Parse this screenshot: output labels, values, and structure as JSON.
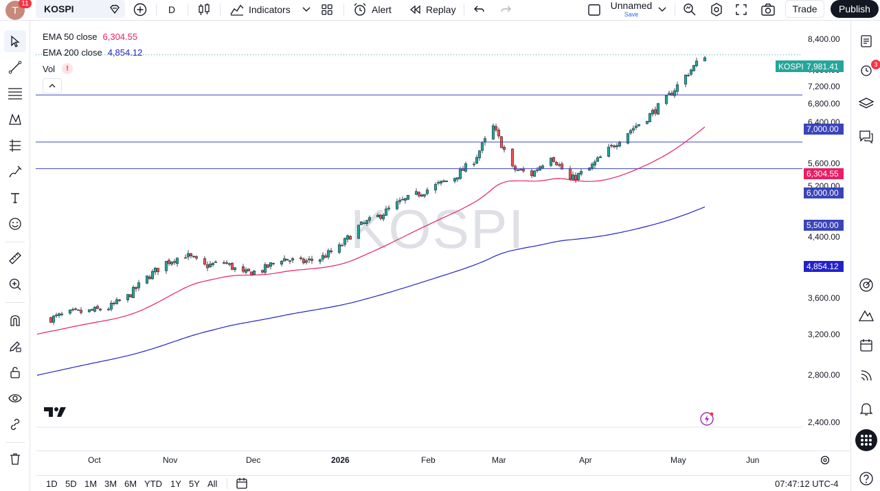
{
  "topbar": {
    "avatar_letter": "T",
    "notifications": "11",
    "symbol": "KOSPI",
    "interval": "D",
    "indicators_label": "Indicators",
    "alert_label": "Alert",
    "replay_label": "Replay",
    "layout_name": "Unnamed",
    "layout_save": "Save",
    "trade_label": "Trade",
    "publish_label": "Publish"
  },
  "legend": {
    "ema50_label": "EMA 50 close",
    "ema50_value": "6,304.55",
    "ema200_label": "EMA 200 close",
    "ema200_value": "4,854.12",
    "vol_label": "Vol",
    "vol_warning": "!"
  },
  "colors": {
    "up": "#26a69a",
    "down": "#ef5350",
    "ema50": "#e91e63",
    "ema200": "#2222cc",
    "hline": "#3944bc",
    "accent": "#2962ff",
    "bg": "#ffffff"
  },
  "price_scale": [
    "8,400.00",
    "7,600.00",
    "7,200.00",
    "6,800.00",
    "6,400.00",
    "5,600.00",
    "5,200.00",
    "4,400.00",
    "4,000.00",
    "3,600.00",
    "3,200.00",
    "2,800.00",
    "2,400.00"
  ],
  "price_tags": {
    "symbol_tag": "KOSPI",
    "last_price": "7,981.41",
    "hline_7000": "7,000.00",
    "ema50": "6,304.55",
    "hline_6000": "6,000.00",
    "hline_5500": "5,500.00",
    "ema200": "4,854.12"
  },
  "time_axis": [
    "Oct",
    "Nov",
    "Dec",
    "2026",
    "Feb",
    "Mar",
    "Apr",
    "May",
    "Jun"
  ],
  "bottombar": {
    "ranges": [
      "1D",
      "5D",
      "1M",
      "3M",
      "6M",
      "YTD",
      "1Y",
      "5Y",
      "All"
    ],
    "clock": "07:47:12 UTC-4"
  },
  "right_alerts_badge": "3",
  "chart_data": {
    "type": "candlestick",
    "title": "KOSPI",
    "interval": "D",
    "ylim": [
      2200,
      8700
    ],
    "y_scale": "log",
    "x_range": [
      "2025-09-15",
      "2026-06-15"
    ],
    "grid": false,
    "horizontal_lines": [
      7000,
      6000,
      5500
    ],
    "last_price": 7981.41,
    "series": [
      {
        "name": "EMA 50 close",
        "last": 6304.55
      },
      {
        "name": "EMA 200 close",
        "last": 4854.12
      }
    ],
    "closes_approx": [
      [
        "2025-09-15",
        3370
      ],
      [
        "2025-09-22",
        3430
      ],
      [
        "2025-09-29",
        3450
      ],
      [
        "2025-10-06",
        3490
      ],
      [
        "2025-10-13",
        3620
      ],
      [
        "2025-10-20",
        3850
      ],
      [
        "2025-10-27",
        4050
      ],
      [
        "2025-11-03",
        4150
      ],
      [
        "2025-11-10",
        4000
      ],
      [
        "2025-11-17",
        4050
      ],
      [
        "2025-11-24",
        3900
      ],
      [
        "2025-12-01",
        3950
      ],
      [
        "2025-12-08",
        4100
      ],
      [
        "2025-12-15",
        4050
      ],
      [
        "2025-12-22",
        4100
      ],
      [
        "2025-12-29",
        4250
      ],
      [
        "2026-01-05",
        4550
      ],
      [
        "2026-01-12",
        4700
      ],
      [
        "2026-01-19",
        4900
      ],
      [
        "2026-01-26",
        5050
      ],
      [
        "2026-02-02",
        5200
      ],
      [
        "2026-02-09",
        5350
      ],
      [
        "2026-02-16",
        5650
      ],
      [
        "2026-02-23",
        6300
      ],
      [
        "2026-03-02",
        5500
      ],
      [
        "2026-03-09",
        5400
      ],
      [
        "2026-03-16",
        5750
      ],
      [
        "2026-03-23",
        5300
      ],
      [
        "2026-03-30",
        5500
      ],
      [
        "2026-04-06",
        5850
      ],
      [
        "2026-04-13",
        6200
      ],
      [
        "2026-04-20",
        6500
      ],
      [
        "2026-04-27",
        6900
      ],
      [
        "2026-05-04",
        7450
      ],
      [
        "2026-05-11",
        7981.41
      ]
    ]
  }
}
